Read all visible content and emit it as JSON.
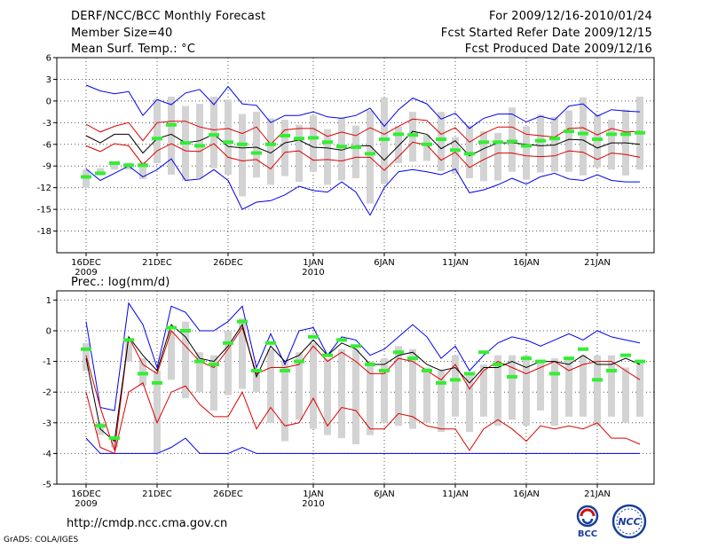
{
  "header": {
    "title": "DERF/NCC/BCC Monthly Forecast",
    "member_size": "Member Size=40",
    "variable": "Mean Surf. Temp.: °C",
    "period": "For 2009/12/16-2010/01/24",
    "start_date": "Fcst Started Refer Date 2009/12/15",
    "produced_date": "Fcst Produced Date 2009/12/16"
  },
  "footer": {
    "url": "http://cmdp.ncc.cma.gov.cn",
    "credit": "GrADS: COLA/IGES",
    "logo_left_text": "BCC",
    "logo_right_text": "NCC"
  },
  "colors": {
    "max_min": "#0000ee",
    "percentile": "#dd0000",
    "mean": "#000000",
    "box": "#d3d3d3",
    "marker": "#33ee33",
    "grid": "#555555"
  },
  "chart_data": [
    {
      "type": "box",
      "title": "Mean Surf. Temp.: °C",
      "ylim": [
        -21,
        6
      ],
      "yticks": [
        6,
        3,
        0,
        -3,
        -6,
        -9,
        -12,
        -15,
        -18
      ],
      "xticks": [
        {
          "day": 1,
          "label": "16DEC",
          "sub": "2009"
        },
        {
          "day": 6,
          "label": "21DEC",
          "sub": ""
        },
        {
          "day": 11,
          "label": "26DEC",
          "sub": ""
        },
        {
          "day": 17,
          "label": "1JAN",
          "sub": "2010"
        },
        {
          "day": 22,
          "label": "6JAN",
          "sub": ""
        },
        {
          "day": 27,
          "label": "11JAN",
          "sub": ""
        },
        {
          "day": 32,
          "label": "16JAN",
          "sub": ""
        },
        {
          "day": 37,
          "label": "21JAN",
          "sub": ""
        }
      ],
      "days": [
        1,
        2,
        3,
        4,
        5,
        6,
        7,
        8,
        9,
        10,
        11,
        12,
        13,
        14,
        15,
        16,
        17,
        18,
        19,
        20,
        21,
        22,
        23,
        24,
        25,
        26,
        27,
        28,
        29,
        30,
        31,
        32,
        33,
        34,
        35,
        36,
        37,
        38,
        39,
        40
      ],
      "max": [
        2.2,
        1.4,
        1.0,
        1.3,
        -2.0,
        0.2,
        -0.5,
        1.1,
        1.6,
        -0.5,
        2.0,
        -0.4,
        -0.6,
        -3.0,
        -2.0,
        -2.0,
        -1.5,
        -2.2,
        -2.4,
        -2.0,
        -1.0,
        -3.5,
        -1.2,
        0.4,
        -0.4,
        -2.5,
        -1.7,
        -3.8,
        -2.4,
        -1.8,
        -1.8,
        -2.9,
        -2.1,
        -2.6,
        -0.7,
        -0.4,
        -2.1,
        -1.2,
        -1.4,
        -1.5
      ],
      "pct_hi": [
        -3.2,
        -4.3,
        -3.5,
        -3.0,
        -5.5,
        -3.0,
        -2.8,
        -2.8,
        -3.6,
        -4.0,
        -3.8,
        -4.5,
        -3.6,
        -6.0,
        -4.0,
        -3.8,
        -3.8,
        -4.9,
        -4.3,
        -4.8,
        -3.7,
        -4.6,
        -3.5,
        -2.5,
        -2.7,
        -4.6,
        -3.7,
        -5.7,
        -4.5,
        -3.6,
        -3.6,
        -4.6,
        -4.8,
        -5.0,
        -3.8,
        -3.7,
        -4.7,
        -3.8,
        -4.3,
        -4.2
      ],
      "mean": [
        -4.8,
        -5.8,
        -4.6,
        -4.6,
        -7.2,
        -5.2,
        -4.6,
        -5.8,
        -5.5,
        -4.6,
        -6.3,
        -6.5,
        -6.4,
        -7.2,
        -5.8,
        -5.4,
        -6.4,
        -6.5,
        -6.8,
        -6.2,
        -6.2,
        -8.2,
        -6.2,
        -4.2,
        -4.6,
        -6.6,
        -5.5,
        -7.6,
        -6.6,
        -5.8,
        -5.8,
        -6.0,
        -6.2,
        -6.1,
        -5.3,
        -5.4,
        -6.5,
        -5.8,
        -5.8,
        -6.0
      ],
      "pct_lo": [
        -6.2,
        -7.0,
        -5.9,
        -6.2,
        -8.8,
        -6.9,
        -5.9,
        -6.9,
        -7.0,
        -5.9,
        -7.8,
        -8.3,
        -8.1,
        -9.4,
        -7.1,
        -6.9,
        -8.2,
        -8.1,
        -8.3,
        -7.8,
        -7.8,
        -9.6,
        -7.7,
        -5.7,
        -6.1,
        -8.2,
        -7.1,
        -9.2,
        -8.1,
        -7.2,
        -7.2,
        -7.6,
        -7.7,
        -7.6,
        -6.9,
        -7.1,
        -8.1,
        -7.2,
        -7.4,
        -7.8
      ],
      "min": [
        -9.4,
        -11.0,
        -10.0,
        -9.0,
        -10.5,
        -9.5,
        -8.0,
        -11.0,
        -10.8,
        -9.5,
        -11.0,
        -15.0,
        -14.0,
        -13.8,
        -13.0,
        -11.8,
        -12.4,
        -12.6,
        -11.2,
        -12.6,
        -15.8,
        -12.0,
        -9.8,
        -9.5,
        -9.8,
        -10.2,
        -9.4,
        -12.7,
        -12.3,
        -11.6,
        -10.7,
        -11.5,
        -10.5,
        -10.0,
        -10.8,
        -11.0,
        -10.2,
        -11.0,
        -11.2,
        -11.2
      ],
      "box_hi": [
        -9.5,
        -9.3,
        -8.7,
        -8.5,
        -8.4,
        0.3,
        0.6,
        -0.7,
        -0.4,
        0.6,
        0.2,
        -1.8,
        -1.5,
        -2.4,
        -2.6,
        -3.3,
        -2.0,
        -3.9,
        -2.3,
        -3.4,
        -1.3,
        0.5,
        -3.5,
        -1.5,
        -4.7,
        -1.5,
        -5.0,
        -3.4,
        -4.2,
        -4.4,
        -0.9,
        -3.5,
        -1.9,
        -2.2,
        -1.3,
        0.5,
        -1.9,
        -2.6,
        -1.2,
        0.6
      ],
      "box_lo": [
        -12.0,
        -10.3,
        -9.5,
        -9.5,
        -10.8,
        -8.6,
        -10.2,
        -11.0,
        -10.7,
        -9.3,
        -10.2,
        -13.2,
        -10.6,
        -11.6,
        -10.4,
        -11.2,
        -9.8,
        -11.6,
        -11.0,
        -10.7,
        -14.2,
        -11.5,
        -8.6,
        -8.4,
        -8.3,
        -9.7,
        -10.1,
        -10.7,
        -11.1,
        -11.0,
        -9.8,
        -10.9,
        -9.9,
        -9.8,
        -9.8,
        -10.3,
        -9.2,
        -9.5,
        -10.3,
        -9.5
      ],
      "marker": [
        -10.5,
        -10.0,
        -8.6,
        -8.9,
        -8.9,
        -5.2,
        -3.3,
        -5.8,
        -6.2,
        -4.7,
        -5.7,
        -6.0,
        -7.2,
        -6.0,
        -4.8,
        -5.2,
        -5.1,
        -5.7,
        -6.3,
        -6.4,
        -7.3,
        -5.3,
        -4.6,
        -4.7,
        -6.0,
        -5.3,
        -6.8,
        -7.3,
        -5.7,
        -5.7,
        -5.6,
        -6.2,
        -5.5,
        -5.2,
        -4.2,
        -4.5,
        -5.3,
        -4.6,
        -4.6,
        -4.4
      ]
    },
    {
      "type": "box",
      "title": "Prec.: log(mm/d)",
      "ylim": [
        -5,
        1.3
      ],
      "yticks": [
        1,
        0,
        -1,
        -2,
        -3,
        -4,
        -5
      ],
      "xticks": [
        {
          "day": 1,
          "label": "16DEC",
          "sub": "2009"
        },
        {
          "day": 6,
          "label": "21DEC",
          "sub": ""
        },
        {
          "day": 11,
          "label": "26DEC",
          "sub": ""
        },
        {
          "day": 17,
          "label": "1JAN",
          "sub": "2010"
        },
        {
          "day": 22,
          "label": "6JAN",
          "sub": ""
        },
        {
          "day": 27,
          "label": "11JAN",
          "sub": ""
        },
        {
          "day": 32,
          "label": "16JAN",
          "sub": ""
        },
        {
          "day": 37,
          "label": "21JAN",
          "sub": ""
        }
      ],
      "days": [
        1,
        2,
        3,
        4,
        5,
        6,
        7,
        8,
        9,
        10,
        11,
        12,
        13,
        14,
        15,
        16,
        17,
        18,
        19,
        20,
        21,
        22,
        23,
        24,
        25,
        26,
        27,
        28,
        29,
        30,
        31,
        32,
        33,
        34,
        35,
        36,
        37,
        38,
        39,
        40
      ],
      "max": [
        0.3,
        -2.5,
        -2.6,
        0.9,
        0.2,
        -1.2,
        0.8,
        0.6,
        0.0,
        0.0,
        0.3,
        0.8,
        -1.2,
        -0.1,
        -1.1,
        0.0,
        0.1,
        -0.8,
        -0.2,
        -0.3,
        -0.8,
        -0.6,
        -0.2,
        0.2,
        -0.2,
        -0.9,
        -0.5,
        -1.3,
        -0.8,
        -0.4,
        -0.2,
        -0.3,
        -0.5,
        -0.3,
        -0.1,
        -0.3,
        0.0,
        -0.2,
        -0.3,
        -0.4
      ],
      "pct_hi": [
        -0.8,
        -2.5,
        -3.9,
        -0.2,
        -1.1,
        -1.4,
        0.0,
        -0.5,
        -1.0,
        -1.2,
        -0.6,
        0.1,
        -1.4,
        -1.2,
        -1.2,
        -1.1,
        -0.5,
        -1.0,
        -0.7,
        -1.0,
        -1.4,
        -1.4,
        -0.9,
        -1.0,
        -1.3,
        -1.6,
        -1.1,
        -1.9,
        -1.3,
        -1.0,
        -1.2,
        -1.4,
        -1.2,
        -1.0,
        -1.3,
        -1.1,
        -1.0,
        -1.0,
        -1.3,
        -1.6
      ],
      "mean": [
        -0.9,
        -3.2,
        -3.6,
        -0.2,
        -0.8,
        -1.3,
        0.2,
        -0.2,
        -0.9,
        -1.0,
        -0.5,
        0.2,
        -1.5,
        -0.5,
        -1.0,
        -0.8,
        -0.3,
        -0.8,
        -0.4,
        -0.6,
        -1.1,
        -1.1,
        -0.8,
        -0.7,
        -1.1,
        -1.3,
        -1.2,
        -1.7,
        -1.2,
        -1.2,
        -1.0,
        -1.2,
        -1.0,
        -1.0,
        -1.1,
        -0.8,
        -1.1,
        -1.1,
        -0.9,
        -1.1
      ],
      "pct_lo": [
        -2.0,
        -3.8,
        -4.0,
        -2.0,
        -1.7,
        -3.0,
        -2.0,
        -1.8,
        -2.4,
        -2.8,
        -2.8,
        -2.0,
        -3.2,
        -2.5,
        -3.1,
        -3.0,
        -2.2,
        -3.1,
        -2.5,
        -2.6,
        -3.2,
        -3.2,
        -2.7,
        -2.8,
        -3.1,
        -3.2,
        -3.2,
        -3.9,
        -3.2,
        -2.9,
        -3.2,
        -3.6,
        -3.1,
        -3.2,
        -3.1,
        -3.2,
        -3.0,
        -3.5,
        -3.5,
        -3.7
      ],
      "min": [
        -3.5,
        -4.0,
        -4.0,
        -4.0,
        -4.0,
        -4.0,
        -3.8,
        -3.5,
        -4.0,
        -4.0,
        -4.0,
        -3.8,
        -4.0,
        -4.0,
        -4.0,
        -4.0,
        -4.0,
        -4.0,
        -4.0,
        -4.0,
        -4.0,
        -4.0,
        -4.0,
        -4.0,
        -4.0,
        -4.0,
        -4.0,
        -4.0,
        -4.0,
        -4.0,
        -4.0,
        -4.0,
        -4.0,
        -4.0,
        -4.0,
        -4.0,
        -4.0,
        -4.0,
        -4.0,
        -4.0
      ],
      "box_hi": [
        -0.4,
        -3.0,
        -3.5,
        -0.3,
        -0.9,
        -1.3,
        0.0,
        0.3,
        -0.7,
        -0.8,
        0.0,
        0.4,
        -1.3,
        -0.6,
        -1.0,
        -0.7,
        -0.4,
        -0.9,
        -0.6,
        -0.6,
        -1.0,
        -0.9,
        -0.5,
        -0.6,
        -1.2,
        -1.3,
        -0.8,
        -1.4,
        -1.1,
        -0.8,
        -0.8,
        -0.8,
        -1.0,
        -0.9,
        -0.9,
        -0.8,
        -0.8,
        -0.8,
        -1.2,
        -1.0
      ],
      "box_lo": [
        -1.3,
        -3.4,
        -3.8,
        -1.0,
        -1.8,
        -4.0,
        -1.6,
        -2.2,
        -2.0,
        -2.6,
        -2.1,
        -1.9,
        -2.0,
        -3.0,
        -3.6,
        -2.9,
        -3.2,
        -3.4,
        -3.5,
        -3.7,
        -3.4,
        -3.0,
        -3.1,
        -3.2,
        -3.0,
        -3.3,
        -2.8,
        -3.3,
        -2.8,
        -3.1,
        -2.9,
        -3.1,
        -2.6,
        -3.1,
        -2.8,
        -2.8,
        -3.1,
        -2.8,
        -3.0,
        -2.8
      ],
      "marker": [
        -0.6,
        -3.1,
        -3.5,
        -0.3,
        -1.4,
        -1.7,
        0.1,
        0.0,
        -1.0,
        -1.1,
        -0.4,
        0.3,
        -1.3,
        -0.4,
        -1.3,
        -1.0,
        -0.2,
        -0.8,
        -0.3,
        -0.5,
        -1.1,
        -1.3,
        -0.7,
        -0.9,
        -1.3,
        -1.7,
        -1.6,
        -1.4,
        -0.7,
        -1.1,
        -1.5,
        -0.9,
        -1.0,
        -1.4,
        -0.9,
        -0.6,
        -1.6,
        -1.3,
        -0.8,
        -1.0
      ]
    }
  ]
}
